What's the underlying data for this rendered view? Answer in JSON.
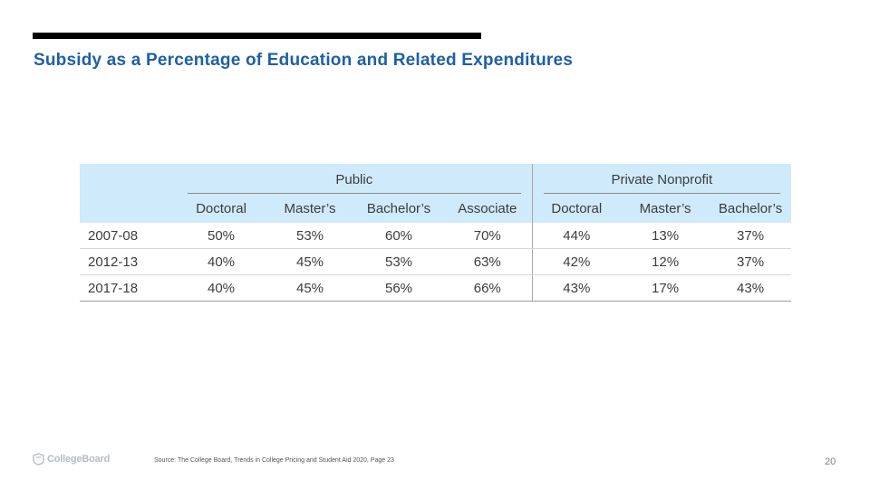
{
  "slide": {
    "title": "Subsidy as a Percentage of Education and Related Expenditures",
    "source": "Source: The College Board, Trends in College Pricing and Student Aid 2020, Page 23",
    "page_number": "20",
    "logo_text": "CollegeBoard",
    "colors": {
      "title": "#1f5fa6",
      "header_bg": "#cfeafb",
      "rule": "#000000"
    }
  },
  "table": {
    "groups": [
      "Public",
      "Private Nonprofit"
    ],
    "columns": [
      "Doctoral",
      "Master’s",
      "Bachelor’s",
      "Associate",
      "Doctoral",
      "Master’s",
      "Bachelor’s"
    ],
    "rows": [
      {
        "year": "2007-08",
        "values": [
          "50%",
          "53%",
          "60%",
          "70%",
          "44%",
          "13%",
          "37%"
        ]
      },
      {
        "year": "2012-13",
        "values": [
          "40%",
          "45%",
          "53%",
          "63%",
          "42%",
          "12%",
          "37%"
        ]
      },
      {
        "year": "2017-18",
        "values": [
          "40%",
          "45%",
          "56%",
          "66%",
          "43%",
          "17%",
          "43%"
        ]
      }
    ]
  }
}
